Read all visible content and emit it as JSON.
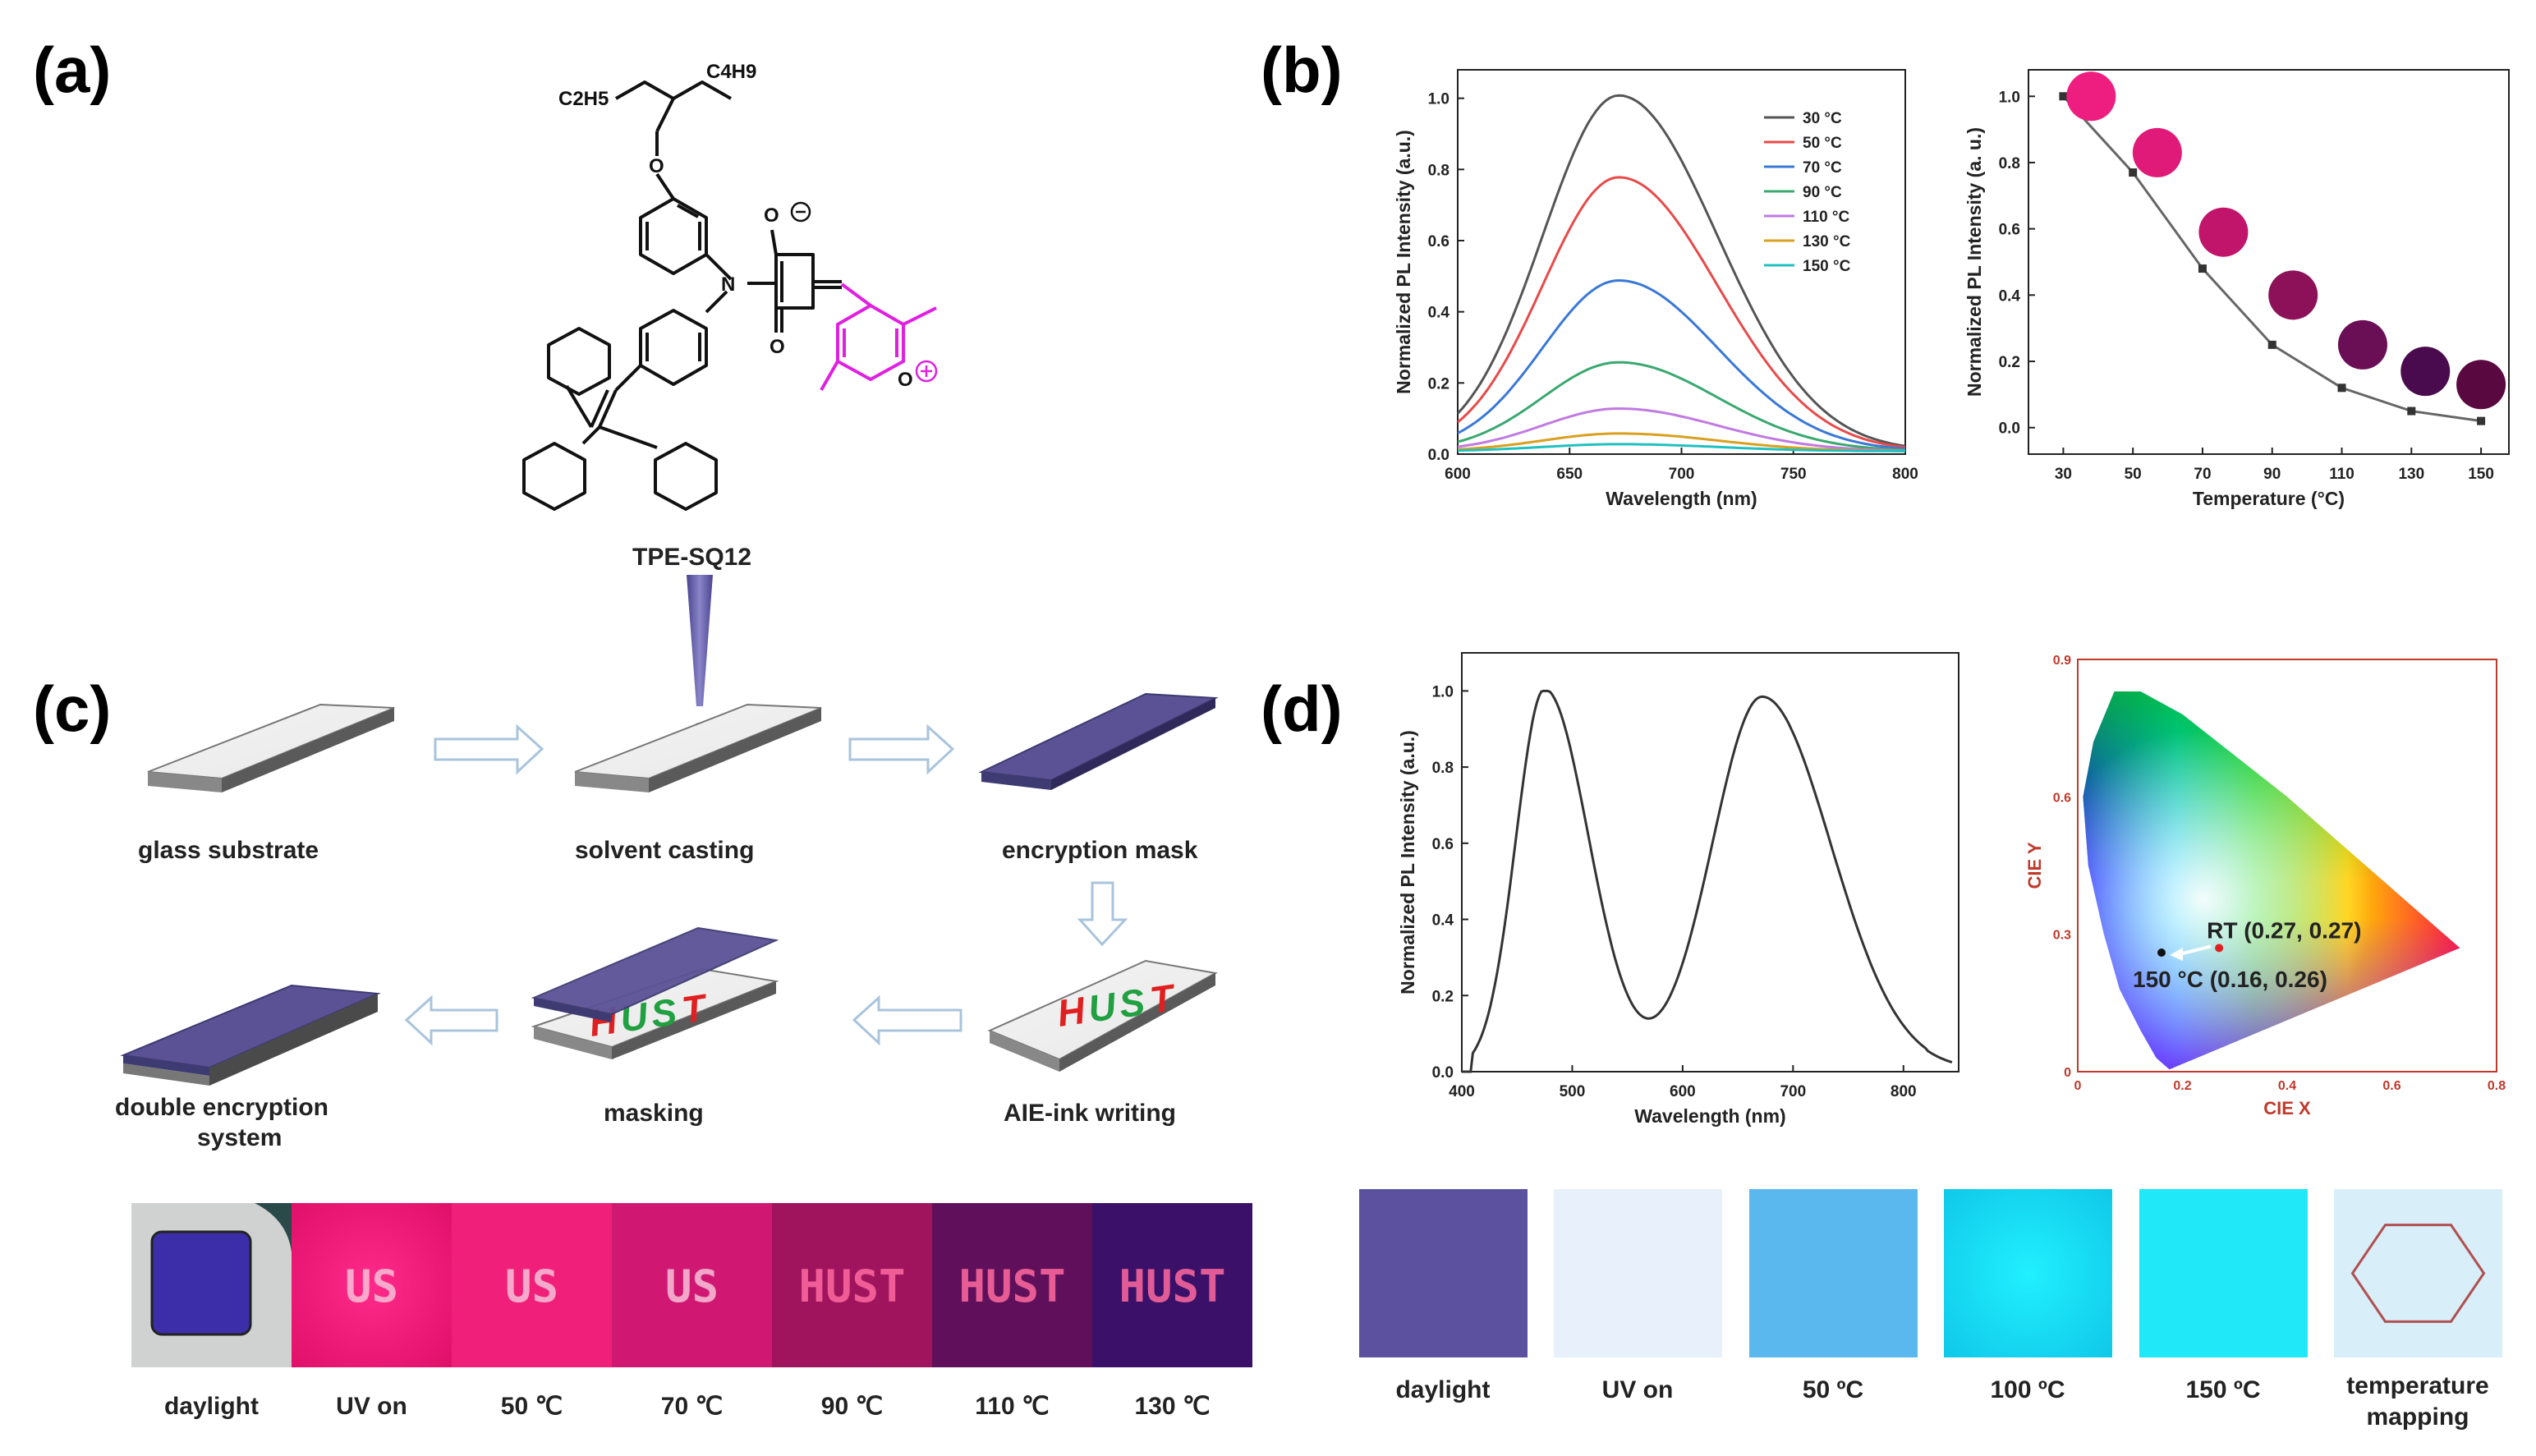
{
  "panels": {
    "a": "(a)",
    "b": "(b)",
    "c": "(c)",
    "d": "(d)"
  },
  "molecule": {
    "name": "TPE-SQ12",
    "labels": {
      "c4h9": "C4H9",
      "c2h5": "C2H5",
      "o": "O",
      "n": "N",
      "o_minus": "O",
      "o_plus": "O"
    },
    "pyrylium_color": "#e020e0"
  },
  "chart_data": [
    {
      "id": "b-left",
      "type": "line",
      "title": "",
      "xlabel": "Wavelength (nm)",
      "ylabel": "Normalized PL Intensity (a.u.)",
      "xlim": [
        600,
        800
      ],
      "ylim": [
        0,
        1.08
      ],
      "xticks": [
        600,
        650,
        700,
        750,
        800
      ],
      "yticks": [
        0.0,
        0.2,
        0.4,
        0.6,
        0.8,
        1.0
      ],
      "peak_nm": 672,
      "series": [
        {
          "name": "30 °C",
          "color": "#555555",
          "peak": 1.0
        },
        {
          "name": "50 °C",
          "color": "#e84a4a",
          "peak": 0.77
        },
        {
          "name": "70 °C",
          "color": "#3a78d6",
          "peak": 0.48
        },
        {
          "name": "90 °C",
          "color": "#3aa870",
          "peak": 0.25
        },
        {
          "name": "110 °C",
          "color": "#c07ae0",
          "peak": 0.12
        },
        {
          "name": "130 °C",
          "color": "#d9a020",
          "peak": 0.05
        },
        {
          "name": "150 °C",
          "color": "#20c0c0",
          "peak": 0.02
        }
      ]
    },
    {
      "id": "b-right",
      "type": "scatter",
      "title": "",
      "xlabel": "Temperature (°C)",
      "ylabel": "Normalized PL Intensity (a. u.)",
      "xlim": [
        20,
        158
      ],
      "ylim": [
        -0.08,
        1.08
      ],
      "xticks": [
        30,
        50,
        70,
        90,
        110,
        130,
        150
      ],
      "yticks": [
        0.0,
        0.2,
        0.4,
        0.6,
        0.8,
        1.0
      ],
      "x": [
        30,
        50,
        70,
        90,
        110,
        130,
        150
      ],
      "y": [
        1.0,
        0.77,
        0.48,
        0.25,
        0.12,
        0.05,
        0.02
      ],
      "dots": [
        {
          "x": 38,
          "y": 1.0,
          "color": "#ee1e80"
        },
        {
          "x": 57,
          "y": 0.83,
          "color": "#e01a78"
        },
        {
          "x": 76,
          "y": 0.59,
          "color": "#c0156a"
        },
        {
          "x": 96,
          "y": 0.4,
          "color": "#8c1158"
        },
        {
          "x": 116,
          "y": 0.25,
          "color": "#6a0e55"
        },
        {
          "x": 134,
          "y": 0.17,
          "color": "#4a0a4e"
        },
        {
          "x": 150,
          "y": 0.13,
          "color": "#5a0840"
        }
      ]
    },
    {
      "id": "d-left",
      "type": "line",
      "title": "",
      "xlabel": "Wavelength (nm)",
      "ylabel": "Normalized PL Intensity (a.u.)",
      "xlim": [
        400,
        850
      ],
      "ylim": [
        0,
        1.1
      ],
      "xticks": [
        400,
        500,
        600,
        700,
        800
      ],
      "yticks": [
        0.0,
        0.2,
        0.4,
        0.6,
        0.8,
        1.0
      ],
      "peaks": [
        {
          "nm": 475,
          "value": 1.0
        },
        {
          "nm": 672,
          "value": 0.98
        }
      ],
      "valley": {
        "nm": 585,
        "value": 0.15
      }
    },
    {
      "id": "d-right",
      "type": "scatter",
      "title": "",
      "xlabel": "CIE X",
      "ylabel": "CIE Y",
      "xlim": [
        0,
        0.8
      ],
      "ylim": [
        0,
        0.9
      ],
      "xticks": [
        "0",
        "0.2",
        "0.4",
        "0.6",
        "0.8"
      ],
      "yticks": [
        "0",
        "0.3",
        "0.6",
        "0.9"
      ],
      "points": [
        {
          "label": "RT (0.27, 0.27)",
          "x": 0.27,
          "y": 0.27,
          "color": "#e02020"
        },
        {
          "label": "150 °C (0.16, 0.26)",
          "x": 0.16,
          "y": 0.26,
          "color": "#111111"
        }
      ]
    }
  ],
  "process_c": {
    "steps": {
      "glass": "glass substrate",
      "casting": "solvent casting",
      "mask": "encryption mask",
      "writing": "AIE-ink writing",
      "masking": "masking",
      "double_l1": "double encryption",
      "double_l2": "system"
    },
    "hust_letters": [
      {
        "char": "H",
        "color": "#e02020"
      },
      {
        "char": "U",
        "color": "#20a040"
      },
      {
        "char": "S",
        "color": "#20a040"
      },
      {
        "char": "T",
        "color": "#e02020"
      }
    ]
  },
  "photos_c": {
    "labels": [
      "daylight",
      "UV on",
      "50 ℃",
      "70 ℃",
      "90 ℃",
      "110 ℃",
      "130 ℃"
    ],
    "texts": [
      "",
      "US",
      "US",
      "US",
      "HUST",
      "HUST",
      "HUST"
    ]
  },
  "photos_d": {
    "labels": [
      "daylight",
      "UV on",
      "50 ºC",
      "100 ºC",
      "150 ºC",
      "temperature",
      "mapping"
    ]
  }
}
